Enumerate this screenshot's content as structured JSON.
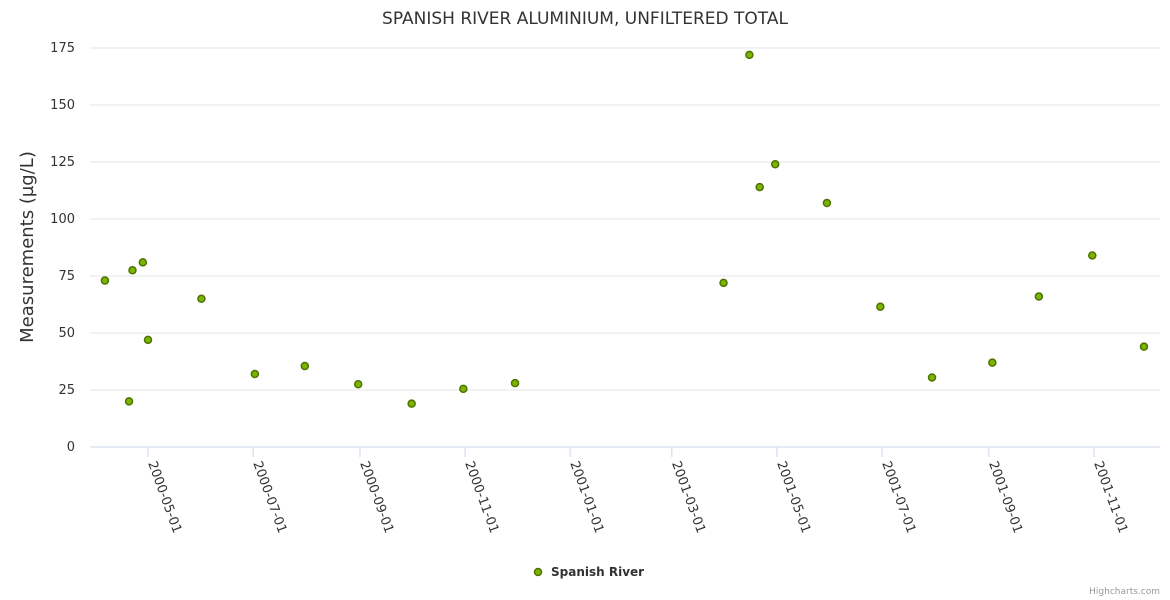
{
  "chart_data": {
    "type": "scatter",
    "title": "SPANISH RIVER ALUMINIUM, UNFILTERED TOTAL",
    "xlabel": "",
    "ylabel": "Measurements (µg/L)",
    "ylim": [
      0,
      175
    ],
    "yticks": [
      0,
      25,
      50,
      75,
      100,
      125,
      150,
      175
    ],
    "xlim": [
      "2000-04-10",
      "2001-12-01"
    ],
    "xticks": [
      "2000-05-01",
      "2000-07-01",
      "2000-09-01",
      "2000-11-01",
      "2001-01-01",
      "2001-03-01",
      "2001-05-01",
      "2001-07-01",
      "2001-09-01",
      "2001-11-01"
    ],
    "grid": true,
    "legend": "bottom-center",
    "series": [
      {
        "name": "Spanish River",
        "color": "#7cb500",
        "border_color": "#4d7300",
        "points": [
          {
            "x": "2000-04-06",
            "y": 73
          },
          {
            "x": "2000-04-20",
            "y": 20
          },
          {
            "x": "2000-04-22",
            "y": 77.5
          },
          {
            "x": "2000-04-28",
            "y": 81
          },
          {
            "x": "2000-05-01",
            "y": 47
          },
          {
            "x": "2000-06-01",
            "y": 65
          },
          {
            "x": "2000-07-02",
            "y": 32
          },
          {
            "x": "2000-07-31",
            "y": 35.5
          },
          {
            "x": "2000-08-31",
            "y": 27.5
          },
          {
            "x": "2000-10-01",
            "y": 19
          },
          {
            "x": "2000-10-31",
            "y": 25.5
          },
          {
            "x": "2000-11-30",
            "y": 28
          },
          {
            "x": "2001-03-31",
            "y": 72
          },
          {
            "x": "2001-04-15",
            "y": 172
          },
          {
            "x": "2001-04-21",
            "y": 114
          },
          {
            "x": "2001-04-30",
            "y": 124
          },
          {
            "x": "2001-05-30",
            "y": 107
          },
          {
            "x": "2001-06-30",
            "y": 61.5
          },
          {
            "x": "2001-07-30",
            "y": 30.5
          },
          {
            "x": "2001-09-03",
            "y": 37
          },
          {
            "x": "2001-09-30",
            "y": 66
          },
          {
            "x": "2001-10-31",
            "y": 84
          },
          {
            "x": "2001-11-30",
            "y": 44
          }
        ]
      }
    ]
  },
  "credits": "Highcharts.com"
}
